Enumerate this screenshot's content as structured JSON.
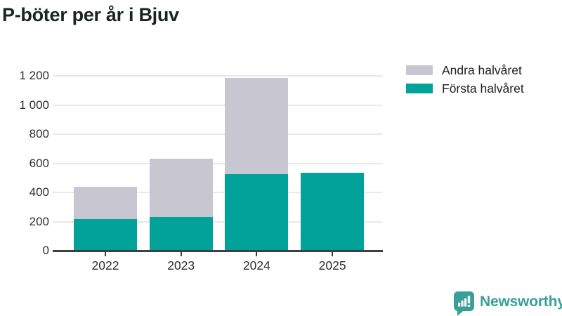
{
  "title": "P-böter per år i Bjuv",
  "chart_data": {
    "type": "bar",
    "stacked": true,
    "title": "P-böter per år i Bjuv",
    "categories": [
      "2022",
      "2023",
      "2024",
      "2025"
    ],
    "series": [
      {
        "name": "Första halvåret",
        "color": "#00a29a",
        "values": [
          215,
          230,
          525,
          535
        ]
      },
      {
        "name": "Andra halvåret",
        "color": "#c8c6d0",
        "values": [
          225,
          400,
          660,
          0
        ]
      }
    ],
    "stack_totals": [
      440,
      630,
      1185,
      535
    ],
    "xlabel": "",
    "ylabel": "",
    "ylim": [
      0,
      1200
    ],
    "yticks": [
      0,
      200,
      400,
      600,
      800,
      1000,
      1200
    ],
    "ytick_labels": [
      "0",
      "200",
      "400",
      "600",
      "800",
      "1 000",
      "1 200"
    ],
    "grid": "horizontal",
    "legend_position": "top-right"
  },
  "legend": {
    "items": [
      {
        "label": "Andra halvåret",
        "color": "#c8c6d0"
      },
      {
        "label": "Första halvåret",
        "color": "#00a29a"
      }
    ]
  },
  "branding": {
    "logo_text": "Newsworthy",
    "logo_icon": "bar-chart-speech-bubble-icon",
    "logo_color": "#38a098"
  },
  "colors": {
    "first_half": "#00a29a",
    "second_half": "#c8c6d0",
    "gridline": "#e8e8e8",
    "axis": "#3f3f3f",
    "title_text": "#1d2420",
    "tick_text": "#2e2e2e"
  }
}
